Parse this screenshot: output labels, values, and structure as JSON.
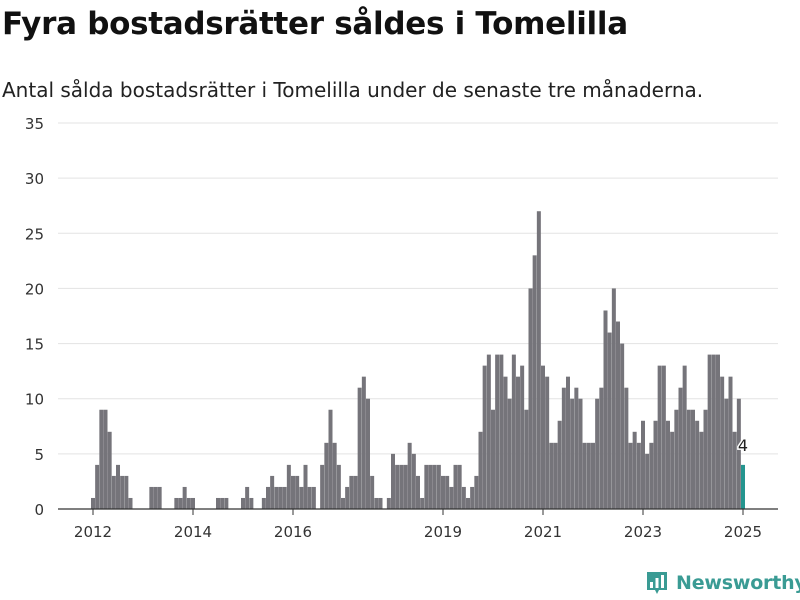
{
  "title": "Fyra bostadsrätter såldes i Tomelilla",
  "subtitle": "Antal sålda bostadsrätter i Tomelilla under de senaste tre månaderna.",
  "brand": {
    "name": "Newsworthy",
    "icon": "newsworthy-chart-logo-icon",
    "color": "#3a9b94"
  },
  "colors": {
    "bar": "#75747a",
    "highlight": "#24958f",
    "grid": "#e3e3e3",
    "axis": "#333333"
  },
  "chart_data": {
    "type": "bar",
    "title": "",
    "xlabel": "",
    "ylabel": "",
    "ylim": [
      0,
      35
    ],
    "yticks": [
      0,
      5,
      10,
      15,
      20,
      25,
      30,
      35
    ],
    "grid": true,
    "xticks": [
      {
        "label": "2012",
        "x": 2012.0
      },
      {
        "label": "2014",
        "x": 2014.0
      },
      {
        "label": "2016",
        "x": 2016.0
      },
      {
        "label": "2019",
        "x": 2019.0
      },
      {
        "label": "2021",
        "x": 2021.0
      },
      {
        "label": "2023",
        "x": 2023.0
      },
      {
        "label": "2025",
        "x": 2025.0
      }
    ],
    "x_start": 2011.0,
    "x_end": 2025.67,
    "bars": [
      {
        "x": 2012.0,
        "value": 1
      },
      {
        "x": 2012.083,
        "value": 4
      },
      {
        "x": 2012.167,
        "value": 9
      },
      {
        "x": 2012.25,
        "value": 9
      },
      {
        "x": 2012.333,
        "value": 7
      },
      {
        "x": 2012.417,
        "value": 3
      },
      {
        "x": 2012.5,
        "value": 4
      },
      {
        "x": 2012.583,
        "value": 3
      },
      {
        "x": 2012.667,
        "value": 3
      },
      {
        "x": 2012.75,
        "value": 1
      },
      {
        "x": 2013.167,
        "value": 2
      },
      {
        "x": 2013.25,
        "value": 2
      },
      {
        "x": 2013.333,
        "value": 2
      },
      {
        "x": 2013.667,
        "value": 1
      },
      {
        "x": 2013.75,
        "value": 1
      },
      {
        "x": 2013.833,
        "value": 2
      },
      {
        "x": 2013.917,
        "value": 1
      },
      {
        "x": 2014.0,
        "value": 1
      },
      {
        "x": 2014.5,
        "value": 1
      },
      {
        "x": 2014.583,
        "value": 1
      },
      {
        "x": 2014.667,
        "value": 1
      },
      {
        "x": 2015.0,
        "value": 1
      },
      {
        "x": 2015.083,
        "value": 2
      },
      {
        "x": 2015.167,
        "value": 1
      },
      {
        "x": 2015.417,
        "value": 1
      },
      {
        "x": 2015.5,
        "value": 2
      },
      {
        "x": 2015.583,
        "value": 3
      },
      {
        "x": 2015.667,
        "value": 2
      },
      {
        "x": 2015.75,
        "value": 2
      },
      {
        "x": 2015.833,
        "value": 2
      },
      {
        "x": 2015.917,
        "value": 4
      },
      {
        "x": 2016.0,
        "value": 3
      },
      {
        "x": 2016.083,
        "value": 3
      },
      {
        "x": 2016.167,
        "value": 2
      },
      {
        "x": 2016.25,
        "value": 4
      },
      {
        "x": 2016.333,
        "value": 2
      },
      {
        "x": 2016.417,
        "value": 2
      },
      {
        "x": 2016.583,
        "value": 4
      },
      {
        "x": 2016.667,
        "value": 6
      },
      {
        "x": 2016.75,
        "value": 9
      },
      {
        "x": 2016.833,
        "value": 6
      },
      {
        "x": 2016.917,
        "value": 4
      },
      {
        "x": 2017.0,
        "value": 1
      },
      {
        "x": 2017.083,
        "value": 2
      },
      {
        "x": 2017.167,
        "value": 3
      },
      {
        "x": 2017.25,
        "value": 3
      },
      {
        "x": 2017.333,
        "value": 11
      },
      {
        "x": 2017.417,
        "value": 12
      },
      {
        "x": 2017.5,
        "value": 10
      },
      {
        "x": 2017.583,
        "value": 3
      },
      {
        "x": 2017.667,
        "value": 1
      },
      {
        "x": 2017.75,
        "value": 1
      },
      {
        "x": 2017.917,
        "value": 1
      },
      {
        "x": 2018.0,
        "value": 5
      },
      {
        "x": 2018.083,
        "value": 4
      },
      {
        "x": 2018.167,
        "value": 4
      },
      {
        "x": 2018.25,
        "value": 4
      },
      {
        "x": 2018.333,
        "value": 6
      },
      {
        "x": 2018.417,
        "value": 5
      },
      {
        "x": 2018.5,
        "value": 3
      },
      {
        "x": 2018.583,
        "value": 1
      },
      {
        "x": 2018.667,
        "value": 4
      },
      {
        "x": 2018.75,
        "value": 4
      },
      {
        "x": 2018.833,
        "value": 4
      },
      {
        "x": 2018.917,
        "value": 4
      },
      {
        "x": 2019.0,
        "value": 3
      },
      {
        "x": 2019.083,
        "value": 3
      },
      {
        "x": 2019.167,
        "value": 2
      },
      {
        "x": 2019.25,
        "value": 4
      },
      {
        "x": 2019.333,
        "value": 4
      },
      {
        "x": 2019.417,
        "value": 2
      },
      {
        "x": 2019.5,
        "value": 1
      },
      {
        "x": 2019.583,
        "value": 2
      },
      {
        "x": 2019.667,
        "value": 3
      },
      {
        "x": 2019.75,
        "value": 7
      },
      {
        "x": 2019.833,
        "value": 13
      },
      {
        "x": 2019.917,
        "value": 14
      },
      {
        "x": 2020.0,
        "value": 9
      },
      {
        "x": 2020.083,
        "value": 14
      },
      {
        "x": 2020.167,
        "value": 14
      },
      {
        "x": 2020.25,
        "value": 12
      },
      {
        "x": 2020.333,
        "value": 10
      },
      {
        "x": 2020.417,
        "value": 14
      },
      {
        "x": 2020.5,
        "value": 12
      },
      {
        "x": 2020.583,
        "value": 13
      },
      {
        "x": 2020.667,
        "value": 9
      },
      {
        "x": 2020.75,
        "value": 20
      },
      {
        "x": 2020.833,
        "value": 23
      },
      {
        "x": 2020.917,
        "value": 27
      },
      {
        "x": 2021.0,
        "value": 13
      },
      {
        "x": 2021.083,
        "value": 12
      },
      {
        "x": 2021.167,
        "value": 6
      },
      {
        "x": 2021.25,
        "value": 6
      },
      {
        "x": 2021.333,
        "value": 8
      },
      {
        "x": 2021.417,
        "value": 11
      },
      {
        "x": 2021.5,
        "value": 12
      },
      {
        "x": 2021.583,
        "value": 10
      },
      {
        "x": 2021.667,
        "value": 11
      },
      {
        "x": 2021.75,
        "value": 10
      },
      {
        "x": 2021.833,
        "value": 6
      },
      {
        "x": 2021.917,
        "value": 6
      },
      {
        "x": 2022.0,
        "value": 6
      },
      {
        "x": 2022.083,
        "value": 10
      },
      {
        "x": 2022.167,
        "value": 11
      },
      {
        "x": 2022.25,
        "value": 18
      },
      {
        "x": 2022.333,
        "value": 16
      },
      {
        "x": 2022.417,
        "value": 20
      },
      {
        "x": 2022.5,
        "value": 17
      },
      {
        "x": 2022.583,
        "value": 15
      },
      {
        "x": 2022.667,
        "value": 11
      },
      {
        "x": 2022.75,
        "value": 6
      },
      {
        "x": 2022.833,
        "value": 7
      },
      {
        "x": 2022.917,
        "value": 6
      },
      {
        "x": 2023.0,
        "value": 8
      },
      {
        "x": 2023.083,
        "value": 5
      },
      {
        "x": 2023.167,
        "value": 6
      },
      {
        "x": 2023.25,
        "value": 8
      },
      {
        "x": 2023.333,
        "value": 13
      },
      {
        "x": 2023.417,
        "value": 13
      },
      {
        "x": 2023.5,
        "value": 8
      },
      {
        "x": 2023.583,
        "value": 7
      },
      {
        "x": 2023.667,
        "value": 9
      },
      {
        "x": 2023.75,
        "value": 11
      },
      {
        "x": 2023.833,
        "value": 13
      },
      {
        "x": 2023.917,
        "value": 9
      },
      {
        "x": 2024.0,
        "value": 9
      },
      {
        "x": 2024.083,
        "value": 8
      },
      {
        "x": 2024.167,
        "value": 7
      },
      {
        "x": 2024.25,
        "value": 9
      },
      {
        "x": 2024.333,
        "value": 14
      },
      {
        "x": 2024.417,
        "value": 14
      },
      {
        "x": 2024.5,
        "value": 14
      },
      {
        "x": 2024.583,
        "value": 12
      },
      {
        "x": 2024.667,
        "value": 10
      },
      {
        "x": 2024.75,
        "value": 12
      },
      {
        "x": 2024.833,
        "value": 7
      },
      {
        "x": 2024.917,
        "value": 10
      },
      {
        "x": 2025.0,
        "value": 4,
        "highlight": true,
        "label": "4"
      }
    ]
  }
}
